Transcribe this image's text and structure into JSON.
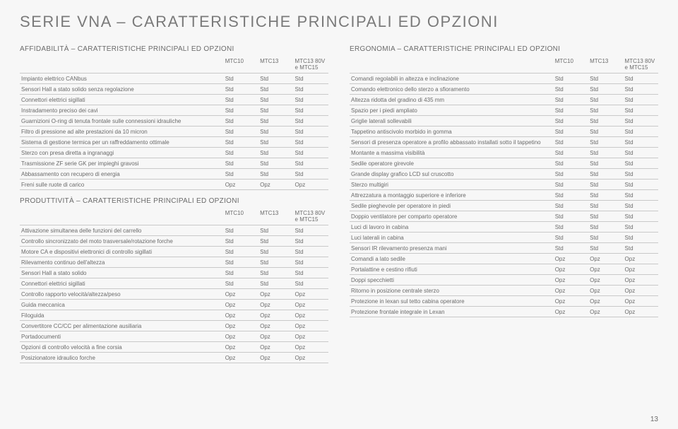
{
  "pageTitle": "SERIE VNA – CARATTERISTICHE PRINCIPALI ED OPZIONI",
  "pageNumber": "13",
  "headers": {
    "h1": "MTC10",
    "h2": "MTC13",
    "h3": "MTC13 80V\ne MTC15"
  },
  "sections": [
    {
      "title": "AFFIDABILITÀ – CARATTERISTICHE PRINCIPALI ED OPZIONI",
      "rows": [
        [
          "Impianto elettrico CANbus",
          "Std",
          "Std",
          "Std"
        ],
        [
          "Sensori Hall a stato solido senza regolazione",
          "Std",
          "Std",
          "Std"
        ],
        [
          "Connettori elettrici sigillati",
          "Std",
          "Std",
          "Std"
        ],
        [
          "Instradamento preciso dei cavi",
          "Std",
          "Std",
          "Std"
        ],
        [
          "Guarnizioni O-ring di tenuta frontale sulle connessioni idrauliche",
          "Std",
          "Std",
          "Std"
        ],
        [
          "Filtro di pressione ad alte prestazioni da 10 micron",
          "Std",
          "Std",
          "Std"
        ],
        [
          "Sistema di gestione termica per un raffreddamento ottimale",
          "Std",
          "Std",
          "Std"
        ],
        [
          "Sterzo con presa diretta a ingranaggi",
          "Std",
          "Std",
          "Std"
        ],
        [
          "Trasmissione ZF serie GK per impieghi gravosi",
          "Std",
          "Std",
          "Std"
        ],
        [
          "Abbassamento con recupero di energia",
          "Std",
          "Std",
          "Std"
        ],
        [
          "Freni sulle ruote di carico",
          "Opz",
          "Opz",
          "Opz"
        ]
      ]
    },
    {
      "title": "PRODUTTIVITÀ – CARATTERISTICHE PRINCIPALI ED OPZIONI",
      "rows": [
        [
          "Attivazione simultanea delle funzioni del carrello",
          "Std",
          "Std",
          "Std"
        ],
        [
          "Controllo sincronizzato del moto trasversale/rotazione forche",
          "Std",
          "Std",
          "Std"
        ],
        [
          "Motore CA e dispositivi elettronici di controllo sigillati",
          "Std",
          "Std",
          "Std"
        ],
        [
          "Rilevamento continuo dell'altezza",
          "Std",
          "Std",
          "Std"
        ],
        [
          "Sensori Hall a stato solido",
          "Std",
          "Std",
          "Std"
        ],
        [
          "Connettori elettrici sigillati",
          "Std",
          "Std",
          "Std"
        ],
        [
          "Controllo rapporto velocità/altezza/peso",
          "Opz",
          "Opz",
          "Opz"
        ],
        [
          "Guida meccanica",
          "Opz",
          "Opz",
          "Opz"
        ],
        [
          "Filoguida",
          "Opz",
          "Opz",
          "Opz"
        ],
        [
          "Convertitore CC/CC per alimentazione ausiliaria",
          "Opz",
          "Opz",
          "Opz"
        ],
        [
          "Portadocumenti",
          "Opz",
          "Opz",
          "Opz"
        ],
        [
          "Opzioni di controllo velocità a fine corsia",
          "Opz",
          "Opz",
          "Opz"
        ],
        [
          "Posizionatore idraulico forche",
          "Opz",
          "Opz",
          "Opz"
        ]
      ]
    },
    {
      "title": "ERGONOMIA – CARATTERISTICHE PRINCIPALI ED OPZIONI",
      "rows": [
        [
          "Comandi regolabili in altezza e inclinazione",
          "Std",
          "Std",
          "Std"
        ],
        [
          "Comando elettronico dello sterzo a sfioramento",
          "Std",
          "Std",
          "Std"
        ],
        [
          "Altezza ridotta del gradino di 435 mm",
          "Std",
          "Std",
          "Std"
        ],
        [
          "Spazio per i piedi ampliato",
          "Std",
          "Std",
          "Std"
        ],
        [
          "Griglie laterali sollevabili",
          "Std",
          "Std",
          "Std"
        ],
        [
          "Tappetino antiscivolo morbido in gomma",
          "Std",
          "Std",
          "Std"
        ],
        [
          "Sensori di presenza operatore a profilo abbassato installati sotto il tappetino",
          "Std",
          "Std",
          "Std"
        ],
        [
          "Montante a massima visibilità",
          "Std",
          "Std",
          "Std"
        ],
        [
          "Sedile operatore girevole",
          "Std",
          "Std",
          "Std"
        ],
        [
          "Grande display grafico LCD sul cruscotto",
          "Std",
          "Std",
          "Std"
        ],
        [
          "Sterzo multigiri",
          "Std",
          "Std",
          "Std"
        ],
        [
          "Attrezzatura a montaggio superiore e inferiore",
          "Std",
          "Std",
          "Std"
        ],
        [
          "Sedile pieghevole per operatore in piedi",
          "Std",
          "Std",
          "Std"
        ],
        [
          "Doppio ventilatore per comparto operatore",
          "Std",
          "Std",
          "Std"
        ],
        [
          "Luci di lavoro in cabina",
          "Std",
          "Std",
          "Std"
        ],
        [
          "Luci laterali in cabina",
          "Std",
          "Std",
          "Std"
        ],
        [
          "Sensori IR rilevamento presenza mani",
          "Std",
          "Std",
          "Std"
        ],
        [
          "Comandi a lato sedile",
          "Opz",
          "Opz",
          "Opz"
        ],
        [
          "Portalattine e cestino rifiuti",
          "Opz",
          "Opz",
          "Opz"
        ],
        [
          "Doppi specchietti",
          "Opz",
          "Opz",
          "Opz"
        ],
        [
          "Ritorno in posizione centrale sterzo",
          "Opz",
          "Opz",
          "Opz"
        ],
        [
          "Protezione in lexan sul tetto cabina operatore",
          "Opz",
          "Opz",
          "Opz"
        ],
        [
          "Protezione frontale integrale in Lexan",
          "Opz",
          "Opz",
          "Opz"
        ]
      ]
    }
  ]
}
